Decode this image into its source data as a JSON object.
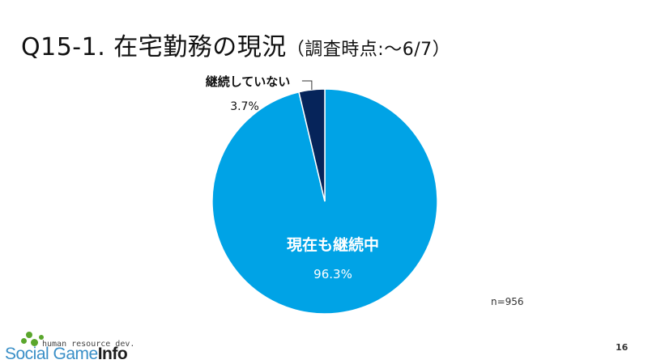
{
  "slide": {
    "title": "Q15-1. 在宅勤務の現況",
    "subtitle": "（調査時点:～6/7）",
    "sample_size": "n=956",
    "page_number": "16"
  },
  "logo": {
    "tagline": "human resource dev.",
    "brand_part1": "Social Game",
    "brand_part2": "Info",
    "brand_color": "#3a8fc7",
    "dot_color": "#5aa62c"
  },
  "chart_data": {
    "type": "pie",
    "title": "",
    "start_angle": "12 o'clock",
    "direction": "clockwise",
    "slices": [
      {
        "label": "現在も継続中",
        "value": 96.3,
        "value_label": "96.3%",
        "color": "#00a3e6",
        "label_color": "#ffffff"
      },
      {
        "label": "継続していない",
        "value": 3.7,
        "value_label": "3.7%",
        "color": "#06245a",
        "label_color": "#111111"
      }
    ]
  }
}
